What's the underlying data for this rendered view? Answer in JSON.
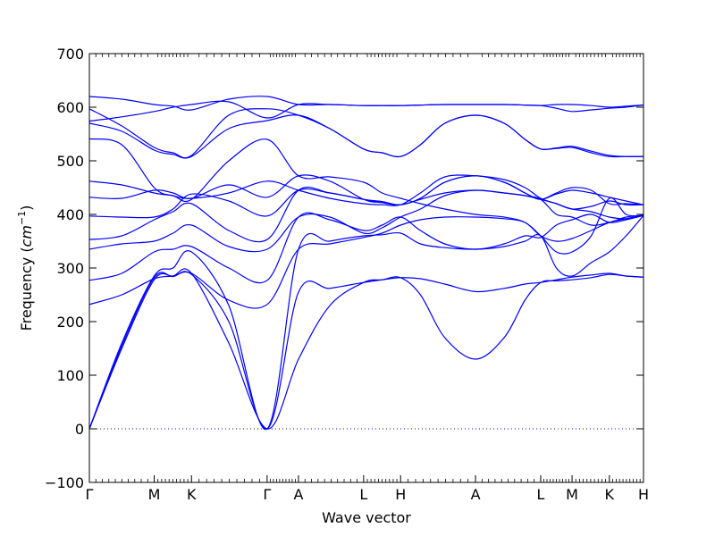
{
  "chart_data": {
    "type": "line",
    "title": "",
    "xlabel": "Wave vector",
    "ylabel": "Frequency (cm⁻¹)",
    "ylabel_parts": {
      "text": "Frequency (",
      "unit": "cm",
      "exp": "−1",
      "close": ")"
    },
    "ylim": [
      -100,
      700
    ],
    "yticks": [
      -100,
      0,
      100,
      200,
      300,
      400,
      500,
      600,
      700
    ],
    "xlim": [
      0,
      15.9
    ],
    "x_ticks": [
      {
        "label": "Γ",
        "x": 0.0
      },
      {
        "label": "M",
        "x": 1.86
      },
      {
        "label": "K",
        "x": 2.93
      },
      {
        "label": "Γ",
        "x": 5.1
      },
      {
        "label": "A",
        "x": 6.0
      },
      {
        "label": "L",
        "x": 7.87
      },
      {
        "label": "H",
        "x": 8.93
      },
      {
        "label": "A",
        "x": 11.08
      },
      {
        "label": "L",
        "x": 12.95
      },
      {
        "label": "M",
        "x": 13.85
      },
      {
        "label": "K",
        "x": 14.92
      },
      {
        "label": "H",
        "x": 15.9
      }
    ],
    "line_color": "#0000ff",
    "zero_line": {
      "y": 0,
      "style": "dotted",
      "color": "#0000ff"
    },
    "grid": false,
    "legend": "none",
    "series": [
      {
        "x": [
          0,
          0.93,
          1.86,
          2.4,
          2.93,
          4.0,
          5.1,
          6.0,
          6.9,
          7.87,
          8.4,
          8.93,
          9.5,
          10.2,
          11.08,
          11.9,
          12.5,
          12.95,
          13.4,
          13.85,
          14.4,
          14.92,
          15.4,
          15.9
        ],
        "values": [
          0,
          150,
          278,
          285,
          290,
          160,
          0,
          130,
          230,
          273,
          278,
          282,
          250,
          170,
          130,
          170,
          240,
          273,
          276,
          278,
          282,
          288,
          285,
          283
        ]
      },
      {
        "x": [
          0,
          0.93,
          1.86,
          2.4,
          2.93,
          4.0,
          5.1,
          6.0,
          6.9,
          7.87,
          8.4,
          8.93,
          9.5,
          10.2,
          11.08,
          11.9,
          12.5,
          12.95,
          13.4,
          13.85,
          14.4,
          14.92,
          15.4,
          15.9
        ],
        "values": [
          0,
          155,
          282,
          284,
          288,
          200,
          0,
          255,
          262,
          273,
          278,
          282,
          280,
          270,
          256,
          262,
          270,
          273,
          278,
          283,
          287,
          290,
          285,
          283
        ]
      },
      {
        "x": [
          0,
          0.93,
          1.86,
          2.4,
          2.93,
          4.0,
          5.1,
          6.0,
          6.9,
          7.87,
          8.4,
          8.93,
          9.5,
          10.2,
          11.08,
          11.9,
          12.5,
          12.95,
          13.4,
          13.85,
          14.4,
          14.92,
          15.4,
          15.9
        ],
        "values": [
          0,
          160,
          285,
          300,
          330,
          230,
          0,
          335,
          350,
          360,
          362,
          365,
          345,
          338,
          335,
          340,
          350,
          360,
          300,
          285,
          310,
          330,
          360,
          398
        ]
      },
      {
        "x": [
          0,
          0.93,
          1.86,
          2.4,
          2.93,
          4.0,
          5.1,
          6.0,
          6.9,
          7.87,
          8.4,
          8.93,
          9.5,
          10.2,
          11.08,
          11.9,
          12.5,
          12.95,
          13.4,
          13.85,
          14.4,
          14.92,
          15.4,
          15.9
        ],
        "values": [
          232,
          250,
          280,
          285,
          290,
          240,
          232,
          335,
          345,
          357,
          365,
          380,
          390,
          395,
          395,
          392,
          385,
          360,
          350,
          355,
          370,
          385,
          392,
          398
        ]
      },
      {
        "x": [
          0,
          0.93,
          1.86,
          2.4,
          2.93,
          4.0,
          5.1,
          6.0,
          6.9,
          7.87,
          8.4,
          8.93,
          9.5,
          10.2,
          11.08,
          11.9,
          12.5,
          12.95,
          13.4,
          13.85,
          14.4,
          14.92,
          15.4,
          15.9
        ],
        "values": [
          277,
          290,
          330,
          335,
          340,
          300,
          277,
          395,
          390,
          370,
          380,
          395,
          370,
          345,
          335,
          345,
          360,
          357,
          380,
          390,
          400,
          385,
          390,
          398
        ]
      },
      {
        "x": [
          0,
          0.93,
          1.86,
          2.4,
          2.93,
          4.0,
          5.1,
          6.0,
          6.9,
          7.87,
          8.4,
          8.93,
          9.5,
          10.2,
          11.08,
          11.9,
          12.5,
          12.95,
          13.4,
          13.85,
          14.4,
          14.92,
          15.4,
          15.9
        ],
        "values": [
          335,
          345,
          350,
          365,
          380,
          340,
          335,
          395,
          395,
          365,
          375,
          395,
          410,
          435,
          445,
          440,
          435,
          428,
          400,
          395,
          380,
          385,
          395,
          398
        ]
      },
      {
        "x": [
          0,
          0.93,
          1.86,
          2.4,
          2.93,
          4.0,
          5.1,
          6.0,
          6.9,
          7.87,
          8.4,
          8.93,
          9.5,
          10.2,
          11.08,
          11.9,
          12.5,
          12.95,
          13.4,
          13.85,
          14.4,
          14.92,
          15.4,
          15.9
        ],
        "values": [
          353,
          360,
          390,
          405,
          420,
          370,
          353,
          445,
          440,
          428,
          422,
          418,
          428,
          440,
          445,
          440,
          435,
          428,
          420,
          410,
          415,
          425,
          418,
          418
        ]
      },
      {
        "x": [
          0,
          0.93,
          1.86,
          2.4,
          2.93,
          4.0,
          5.1,
          6.0,
          6.9,
          7.87,
          8.4,
          8.93,
          9.5,
          10.2,
          11.08,
          11.9,
          12.5,
          12.95,
          13.4,
          13.85,
          14.4,
          14.92,
          15.4,
          15.9
        ],
        "values": [
          397,
          395,
          395,
          410,
          438,
          425,
          397,
          445,
          440,
          428,
          424,
          418,
          430,
          460,
          472,
          460,
          440,
          428,
          438,
          445,
          440,
          432,
          425,
          418
        ]
      },
      {
        "x": [
          0,
          0.93,
          1.86,
          2.4,
          2.93,
          4.0,
          5.1,
          6.0,
          6.9,
          7.87,
          8.4,
          8.93,
          9.5,
          10.2,
          11.08,
          11.9,
          12.5,
          12.95,
          13.4,
          13.85,
          14.4,
          14.92,
          15.4,
          15.9
        ],
        "values": [
          432,
          430,
          445,
          440,
          430,
          455,
          432,
          472,
          462,
          428,
          422,
          418,
          430,
          460,
          472,
          460,
          440,
          428,
          440,
          450,
          445,
          420,
          420,
          418
        ]
      },
      {
        "x": [
          0,
          0.93,
          1.86,
          2.4,
          2.93,
          4.0,
          5.1,
          6.0,
          6.9,
          7.87,
          8.4,
          8.93,
          9.5,
          10.2,
          11.08,
          11.9,
          12.5,
          12.95,
          13.4,
          13.85,
          14.4,
          14.92,
          15.4,
          15.9
        ],
        "values": [
          462,
          455,
          440,
          435,
          428,
          500,
          540,
          472,
          470,
          460,
          440,
          430,
          420,
          410,
          400,
          395,
          385,
          360,
          330,
          330,
          360,
          430,
          400,
          398
        ]
      },
      {
        "x": [
          0,
          0.93,
          1.86,
          2.4,
          2.93,
          4.0,
          5.1,
          6.0,
          6.9,
          7.87,
          8.4,
          8.93,
          9.5,
          10.2,
          11.08,
          11.9,
          12.5,
          12.95,
          13.4,
          13.85,
          14.4,
          14.92,
          15.4,
          15.9
        ],
        "values": [
          541,
          530,
          450,
          435,
          430,
          440,
          462,
          445,
          430,
          420,
          418,
          418,
          440,
          470,
          472,
          465,
          450,
          430,
          420,
          410,
          405,
          395,
          392,
          398
        ]
      },
      {
        "x": [
          0,
          0.93,
          1.86,
          2.4,
          2.93,
          4.0,
          5.1,
          6.0,
          6.9,
          7.87,
          8.4,
          8.93,
          9.5,
          10.2,
          11.08,
          11.9,
          12.5,
          12.95,
          13.4,
          13.85,
          14.4,
          14.92,
          15.4,
          15.9
        ],
        "values": [
          570,
          555,
          520,
          512,
          508,
          560,
          575,
          585,
          560,
          522,
          515,
          508,
          530,
          570,
          585,
          570,
          540,
          522,
          523,
          525,
          515,
          508,
          508,
          508
        ]
      },
      {
        "x": [
          0,
          0.93,
          1.86,
          2.4,
          2.93,
          4.0,
          5.1,
          6.0,
          6.9,
          7.87,
          8.4,
          8.93,
          9.5,
          10.2,
          11.08,
          11.9,
          12.5,
          12.95,
          13.4,
          13.85,
          14.4,
          14.92,
          15.4,
          15.9
        ],
        "values": [
          597,
          565,
          525,
          515,
          510,
          585,
          597,
          585,
          560,
          522,
          515,
          508,
          530,
          570,
          585,
          570,
          540,
          522,
          524,
          527,
          518,
          510,
          508,
          508
        ]
      },
      {
        "x": [
          0,
          0.93,
          1.86,
          2.4,
          2.93,
          4.0,
          5.1,
          6.0,
          6.9,
          7.87,
          8.4,
          8.93,
          9.5,
          10.2,
          11.08,
          11.9,
          12.5,
          12.95,
          13.4,
          13.85,
          14.4,
          14.92,
          15.4,
          15.9
        ],
        "values": [
          574,
          582,
          592,
          600,
          605,
          610,
          580,
          605,
          605,
          603,
          603,
          603,
          604,
          605,
          605,
          605,
          604,
          603,
          598,
          592,
          595,
          598,
          600,
          604
        ]
      },
      {
        "x": [
          0,
          0.93,
          1.86,
          2.4,
          2.93,
          4.0,
          5.1,
          6.0,
          6.9,
          7.87,
          8.4,
          8.93,
          9.5,
          10.2,
          11.08,
          11.9,
          12.5,
          12.95,
          13.4,
          13.85,
          14.4,
          14.92,
          15.4,
          15.9
        ],
        "values": [
          620,
          615,
          605,
          602,
          595,
          615,
          620,
          605,
          605,
          603,
          603,
          603,
          604,
          605,
          605,
          605,
          604,
          603,
          605,
          605,
          603,
          600,
          602,
          604
        ]
      }
    ]
  }
}
